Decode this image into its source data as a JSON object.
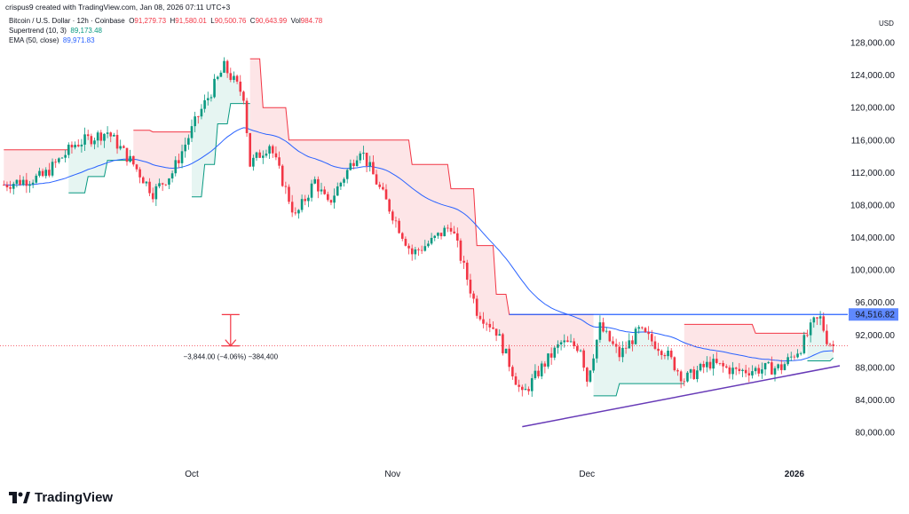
{
  "header": {
    "credit": "crispus9 created with TradingView.com, Jan 08, 2026 07:11 UTC+3"
  },
  "legend": {
    "symbol": "Bitcoin / U.S. Dollar · 12h · Coinbase",
    "o_label": "O",
    "o": "91,279.73",
    "h_label": "H",
    "h": "91,580.01",
    "l_label": "L",
    "l": "90,500.76",
    "c_label": "C",
    "c": "90,643.99",
    "vol_label": "Vol",
    "vol": "984.78",
    "supertrend_label": "Supertrend (10, 3)",
    "supertrend_value": "89,173.48",
    "ema_label": "EMA (50, close)",
    "ema_value": "89,971.83"
  },
  "currency": "USD",
  "brand": "TradingView",
  "chart_data": {
    "type": "candlestick",
    "interval": "12h",
    "ylim": [
      78000,
      130000
    ],
    "y_ticks": [
      "128,000.00",
      "124,000.00",
      "120,000.00",
      "116,000.00",
      "112,000.00",
      "108,000.00",
      "104,000.00",
      "100,000.00",
      "96,000.00",
      "92,000.00",
      "88,000.00",
      "84,000.00",
      "80,000.00"
    ],
    "x_ticks": [
      {
        "label": "Oct",
        "date": "2025-10-01"
      },
      {
        "label": "Nov",
        "date": "2025-11-01"
      },
      {
        "label": "Dec",
        "date": "2025-12-01"
      },
      {
        "label": "2026",
        "date": "2026-01-02"
      }
    ],
    "x_range": [
      "2025-09-02",
      "2026-01-08"
    ],
    "close_path": [
      [
        "2025-09-02",
        110500
      ],
      [
        "2025-09-08",
        111500
      ],
      [
        "2025-09-13",
        115500
      ],
      [
        "2025-09-18",
        117000
      ],
      [
        "2025-09-22",
        113000
      ],
      [
        "2025-09-25",
        109500
      ],
      [
        "2025-09-28",
        112000
      ],
      [
        "2025-10-02",
        119000
      ],
      [
        "2025-10-06",
        125000
      ],
      [
        "2025-10-09",
        121500
      ],
      [
        "2025-10-10",
        113000
      ],
      [
        "2025-10-13",
        115500
      ],
      [
        "2025-10-17",
        106500
      ],
      [
        "2025-10-20",
        111000
      ],
      [
        "2025-10-22",
        108000
      ],
      [
        "2025-10-27",
        115000
      ],
      [
        "2025-10-30",
        110000
      ],
      [
        "2025-11-04",
        102000
      ],
      [
        "2025-11-07",
        103500
      ],
      [
        "2025-11-10",
        105500
      ],
      [
        "2025-11-14",
        95000
      ],
      [
        "2025-11-17",
        92500
      ],
      [
        "2025-11-21",
        84500
      ],
      [
        "2025-11-24",
        88000
      ],
      [
        "2025-11-27",
        91000
      ],
      [
        "2025-11-30",
        90500
      ],
      [
        "2025-12-01",
        86500
      ],
      [
        "2025-12-03",
        93000
      ],
      [
        "2025-12-06",
        89500
      ],
      [
        "2025-12-09",
        92500
      ],
      [
        "2025-12-13",
        90000
      ],
      [
        "2025-12-16",
        86500
      ],
      [
        "2025-12-20",
        88500
      ],
      [
        "2025-12-24",
        87500
      ],
      [
        "2025-12-28",
        87800
      ],
      [
        "2025-12-31",
        88000
      ],
      [
        "2026-01-03",
        90500
      ],
      [
        "2026-01-05",
        93500
      ],
      [
        "2026-01-06",
        94000
      ],
      [
        "2026-01-07",
        91500
      ],
      [
        "2026-01-08",
        90644
      ]
    ],
    "supertrend": [
      {
        "trend": "down",
        "points": [
          [
            "2025-09-02",
            114800
          ],
          [
            "2025-09-12",
            114800
          ]
        ]
      },
      {
        "trend": "up",
        "points": [
          [
            "2025-09-12",
            109500
          ],
          [
            "2025-09-15",
            111500
          ],
          [
            "2025-09-18",
            113500
          ],
          [
            "2025-09-22",
            113500
          ]
        ]
      },
      {
        "trend": "down",
        "points": [
          [
            "2025-09-22",
            117200
          ],
          [
            "2025-09-25",
            117000
          ],
          [
            "2025-10-01",
            117000
          ]
        ]
      },
      {
        "trend": "up",
        "points": [
          [
            "2025-10-01",
            109000
          ],
          [
            "2025-10-03",
            113000
          ],
          [
            "2025-10-05",
            118000
          ],
          [
            "2025-10-07",
            120500
          ],
          [
            "2025-10-10",
            120500
          ]
        ]
      },
      {
        "trend": "down",
        "points": [
          [
            "2025-10-10",
            126000
          ],
          [
            "2025-10-12",
            120000
          ],
          [
            "2025-10-16",
            116000
          ],
          [
            "2025-11-02",
            116000
          ],
          [
            "2025-11-04",
            113000
          ],
          [
            "2025-11-10",
            110000
          ],
          [
            "2025-11-14",
            103000
          ],
          [
            "2025-11-17",
            97000
          ],
          [
            "2025-11-19",
            94500
          ],
          [
            "2025-12-02",
            94500
          ]
        ]
      },
      {
        "trend": "up",
        "points": [
          [
            "2025-12-02",
            84500
          ],
          [
            "2025-12-06",
            86000
          ],
          [
            "2025-12-16",
            86000
          ]
        ]
      },
      {
        "trend": "down",
        "points": [
          [
            "2025-12-16",
            93300
          ],
          [
            "2025-12-26",
            93300
          ],
          [
            "2025-12-27",
            92200
          ],
          [
            "2026-01-04",
            92200
          ]
        ]
      },
      {
        "trend": "up",
        "points": [
          [
            "2026-01-04",
            88800
          ],
          [
            "2026-01-08",
            89173
          ]
        ]
      }
    ],
    "ema_period": 50,
    "resistance": {
      "price": 94516.82,
      "label": "94,516.82",
      "from": "2025-11-19"
    },
    "support_trendline": {
      "from": [
        "2025-11-21",
        80700
      ],
      "to": [
        "2026-01-09",
        88200
      ]
    },
    "measure": {
      "label": "−3,844.00 (−4.06%) −384,400",
      "date": "2025-10-07",
      "from_price": 94500,
      "to_price": 90644
    },
    "colors": {
      "up": "#089981",
      "down": "#f23645",
      "ema": "#2962ff",
      "resistance": "#2962ff",
      "trendline": "#673ab7"
    }
  }
}
